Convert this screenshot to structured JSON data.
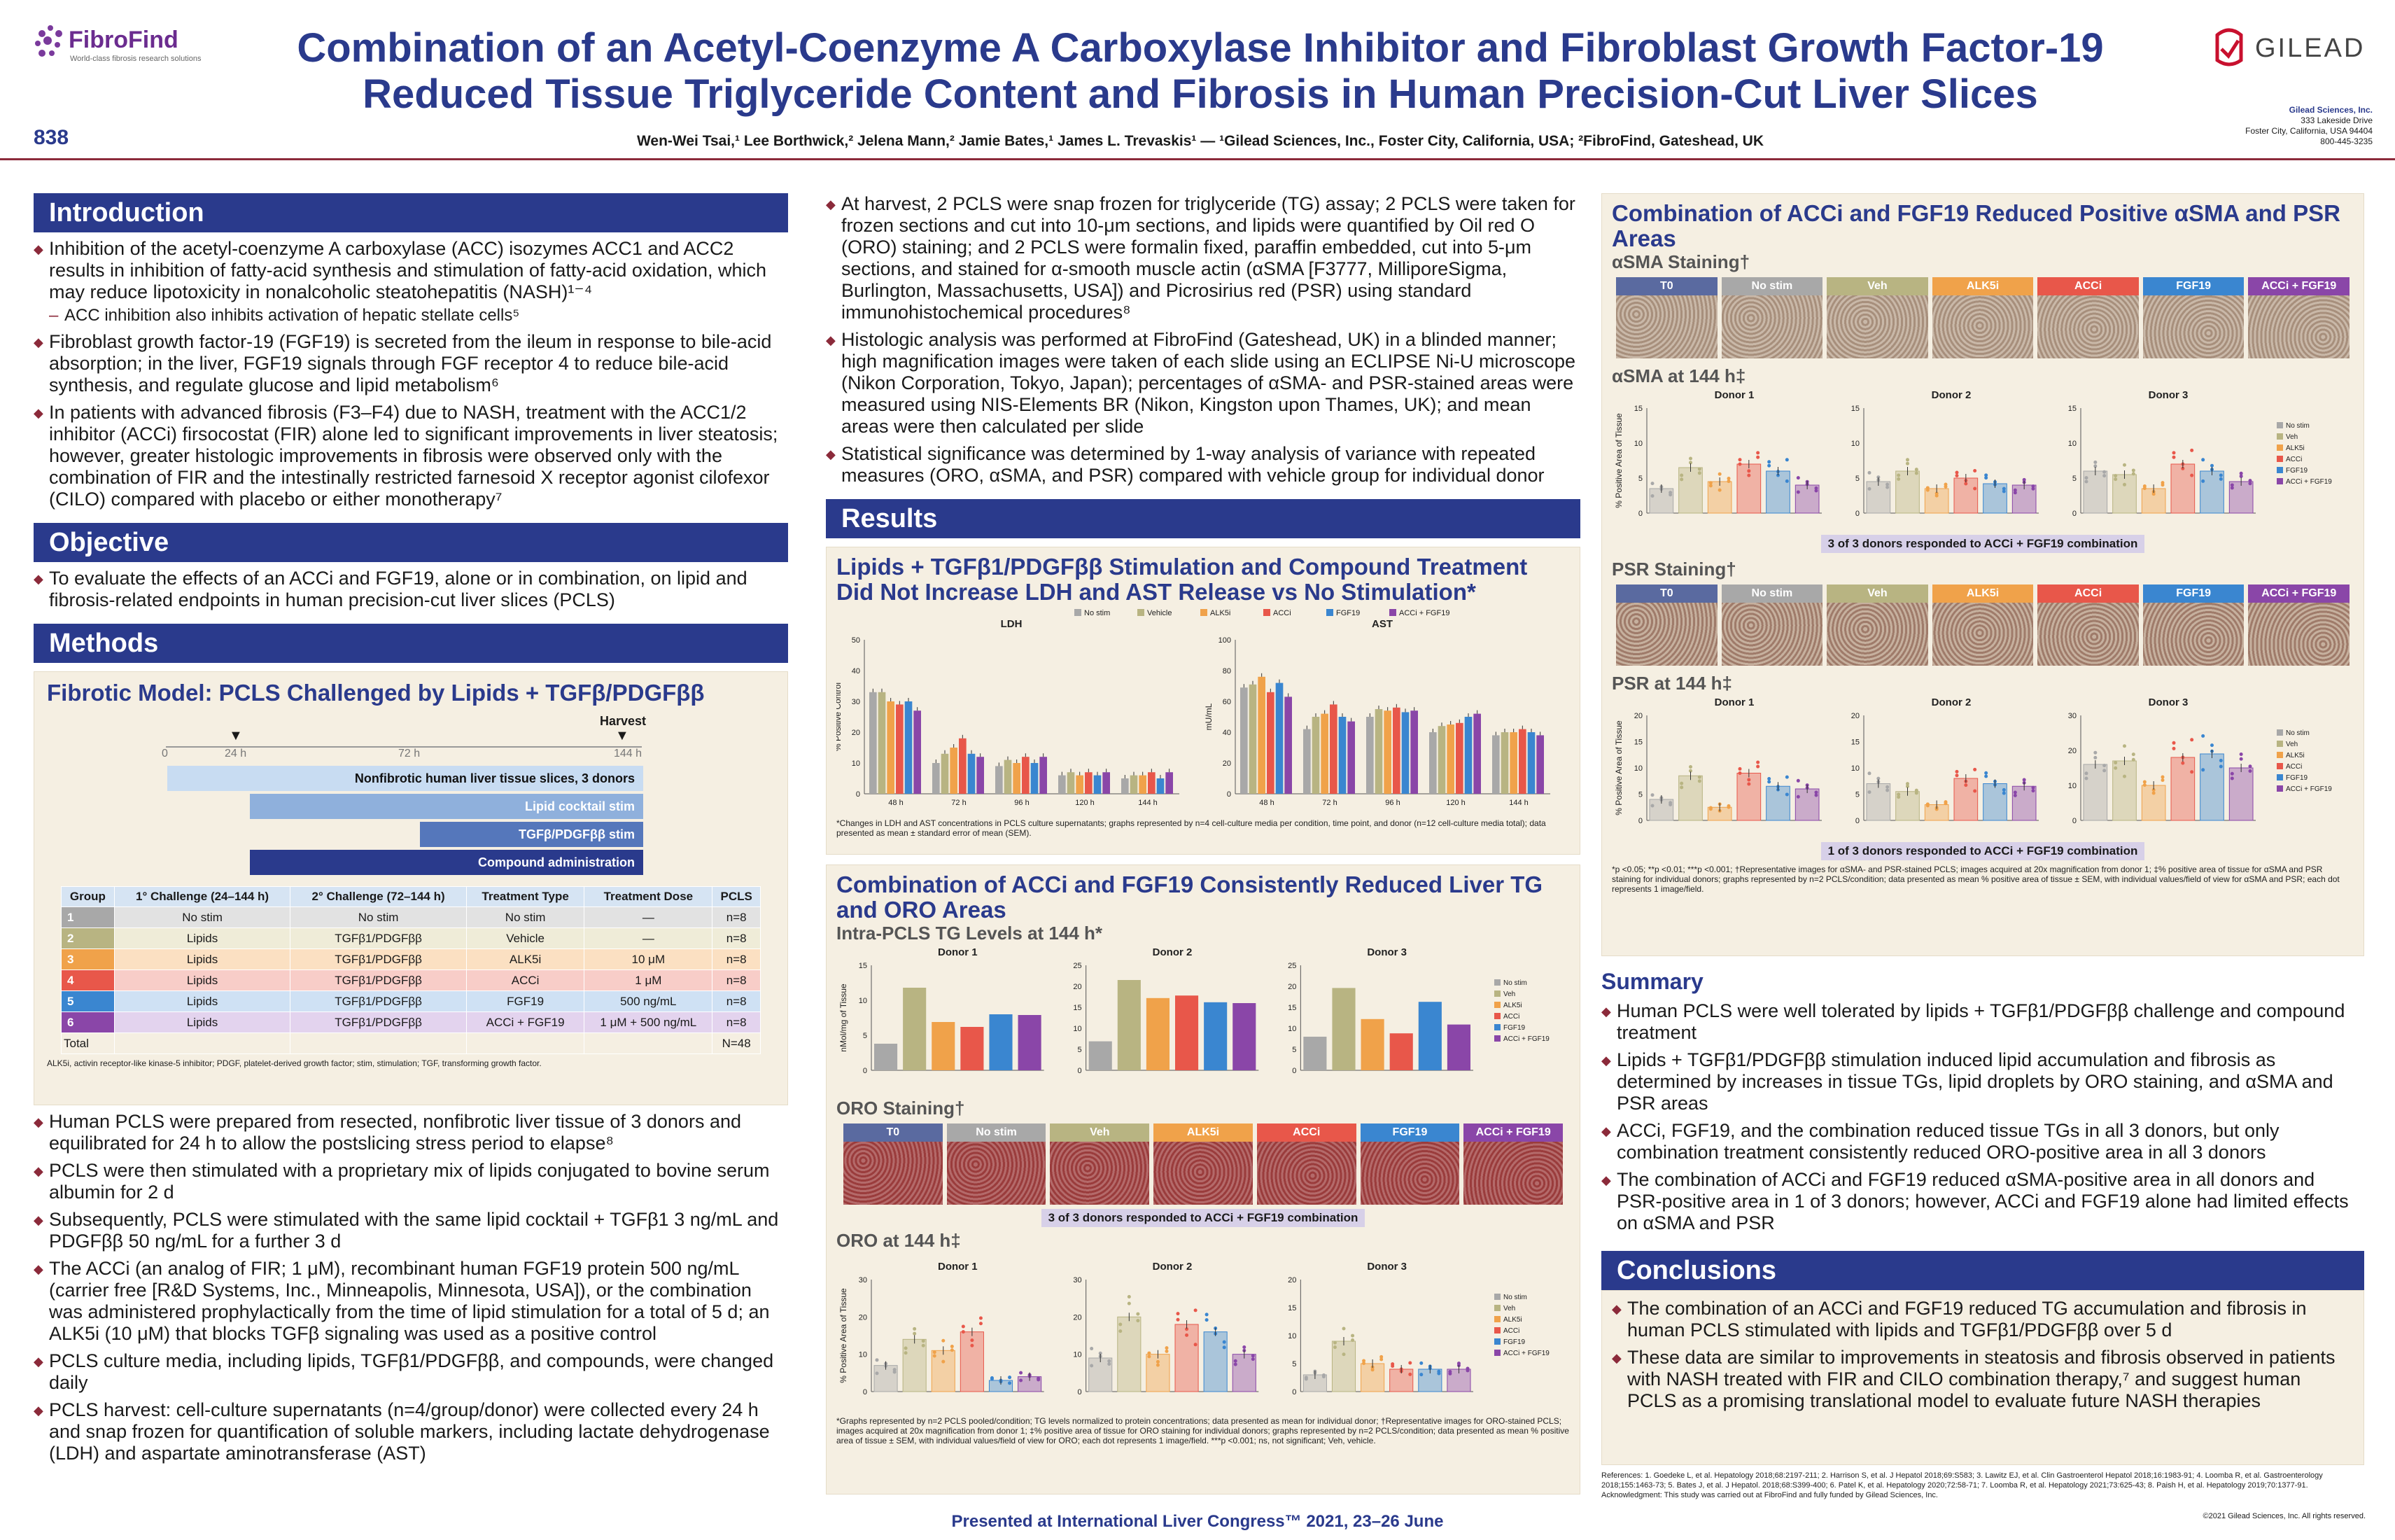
{
  "header": {
    "poster_number": "838",
    "fibrofind_name": "FibroFind",
    "fibrofind_tagline": "World-class fibrosis research solutions",
    "title_line1": "Combination of an Acetyl-Coenzyme A Carboxylase Inhibitor and Fibroblast Growth Factor-19",
    "title_line2": "Reduced Tissue Triglyceride Content and Fibrosis in Human Precision-Cut Liver Slices",
    "authors": "Wen-Wei Tsai,¹ Lee Borthwick,² Jelena Mann,² Jamie Bates,¹ James L. Trevaskis¹ — ¹Gilead Sciences, Inc., Foster City, California, USA; ²FibroFind, Gateshead, UK",
    "gilead_name": "GILEAD",
    "gilead_addr1": "Gilead Sciences, Inc.",
    "gilead_addr2": "333 Lakeside Drive",
    "gilead_addr3": "Foster City, California, USA 94404",
    "gilead_addr4": "800-445-3235",
    "brand_color": "#2a3a8c",
    "accent_color": "#8b2a3a"
  },
  "introduction": {
    "heading": "Introduction",
    "b1": "Inhibition of the acetyl-coenzyme A carboxylase (ACC) isozymes ACC1 and ACC2 results in inhibition of fatty-acid synthesis and stimulation of fatty-acid oxidation, which may reduce lipotoxicity in nonalcoholic steatohepatitis (NASH)¹⁻⁴",
    "b1_sub": "ACC inhibition also inhibits activation of hepatic stellate cells⁵",
    "b2": "Fibroblast growth factor-19 (FGF19) is secreted from the ileum in response to bile-acid absorption; in the liver, FGF19 signals through FGF receptor 4 to reduce bile-acid synthesis, and regulate glucose and lipid metabolism⁶",
    "b3": "In patients with advanced fibrosis (F3–F4) due to NASH, treatment with the ACC1/2 inhibitor (ACCi) firsocostat (FIR) alone led to significant improvements in liver steatosis; however, greater histologic improvements in fibrosis were observed only with the combination of FIR and the intestinally restricted farnesoid X receptor agonist cilofexor (CILO) compared with placebo or either monotherapy⁷"
  },
  "objective": {
    "heading": "Objective",
    "b1": "To evaluate the effects of an ACCi and FGF19, alone or in combination, on lipid and fibrosis-related endpoints in human precision-cut liver slices (PCLS)"
  },
  "methods": {
    "heading": "Methods",
    "model_title": "Fibrotic Model: PCLS Challenged by Lipids + TGFβ/PDGFββ",
    "harvest": "Harvest",
    "ticks": [
      "0",
      "24 h",
      "72 h",
      "144 h"
    ],
    "bars": [
      "Nonfibrotic human liver tissue slices, 3 donors",
      "Lipid cocktail stim",
      "TGFβ/PDGFββ stim",
      "Compound administration"
    ],
    "table_headers": [
      "Group",
      "1° Challenge (24–144 h)",
      "2° Challenge (72–144 h)",
      "Treatment Type",
      "Treatment Dose",
      "PCLS"
    ],
    "table_rows": [
      [
        "1",
        "No stim",
        "No stim",
        "No stim",
        "—",
        "n=8"
      ],
      [
        "2",
        "Lipids",
        "TGFβ1/PDGFββ",
        "Vehicle",
        "—",
        "n=8"
      ],
      [
        "3",
        "Lipids",
        "TGFβ1/PDGFββ",
        "ALK5i",
        "10 μM",
        "n=8"
      ],
      [
        "4",
        "Lipids",
        "TGFβ1/PDGFββ",
        "ACCi",
        "1 μM",
        "n=8"
      ],
      [
        "5",
        "Lipids",
        "TGFβ1/PDGFββ",
        "FGF19",
        "500 ng/mL",
        "n=8"
      ],
      [
        "6",
        "Lipids",
        "TGFβ1/PDGFββ",
        "ACCi + FGF19",
        "1 μM + 500 ng/mL",
        "n=8"
      ]
    ],
    "table_total": "Total",
    "table_total_n": "N=48",
    "table_footnote": "ALK5i, activin receptor-like kinase-5 inhibitor; PDGF, platelet-derived growth factor; stim, stimulation; TGF, transforming growth factor.",
    "b1": "Human PCLS were prepared from resected, nonfibrotic liver tissue of 3 donors and equilibrated for 24 h to allow the postslicing stress period to elapse⁸",
    "b2": "PCLS were then stimulated with a proprietary mix of lipids conjugated to bovine serum albumin for 2 d",
    "b3": "Subsequently, PCLS were stimulated with the same lipid cocktail + TGFβ1 3 ng/mL and PDGFββ 50 ng/mL for a further 3 d",
    "b4": "The ACCi (an analog of FIR; 1 μM), recombinant human FGF19 protein 500 ng/mL (carrier free [R&D Systems, Inc., Minneapolis, Minnesota, USA]), or the combination was administered prophylactically from the time of lipid stimulation for a total of 5 d; an ALK5i (10 μM) that blocks TGFβ signaling was used as a positive control",
    "b5": "PCLS culture media, including lipids, TGFβ1/PDGFββ, and compounds, were changed daily",
    "b6": "PCLS harvest: cell-culture supernatants (n=4/group/donor) were collected every 24 h and snap frozen for quantification of soluble markers, including lactate dehydrogenase (LDH) and aspartate aminotransferase (AST)",
    "c2b1": "At harvest, 2 PCLS were snap frozen for triglyceride (TG) assay; 2 PCLS were taken for frozen sections and cut into 10-μm sections, and lipids were quantified by Oil red O (ORO) staining; and 2 PCLS were formalin fixed, paraffin embedded, cut into 5-μm sections, and stained for α-smooth muscle actin (αSMA [F3777, MilliporeSigma, Burlington, Massachusetts, USA]) and Picrosirius red (PSR) using standard immunohistochemical procedures⁸",
    "c2b2": "Histologic analysis was performed at FibroFind (Gateshead, UK) in a blinded manner; high magnification images were taken of each slide using an ECLIPSE Ni-U microscope (Nikon Corporation, Tokyo, Japan); percentages of αSMA- and PSR-stained areas were measured using NIS-Elements BR (Nikon, Kingston upon Thames, UK); and mean areas were then calculated per slide",
    "c2b3": "Statistical significance was determined by 1-way analysis of variance with repeated measures (ORO, αSMA, and PSR) compared with vehicle group for individual donor"
  },
  "groups": {
    "names": [
      "T0",
      "No stim",
      "Veh",
      "ALK5i",
      "ACCi",
      "FGF19",
      "ACCi + FGF19"
    ],
    "legend6": [
      "No stim",
      "Veh",
      "ALK5i",
      "ACCi",
      "FGF19",
      "ACCi + FGF19"
    ],
    "legend6_ldh": [
      "No stim",
      "Vehicle",
      "ALK5i",
      "ACCi",
      "FGF19",
      "ACCi + FGF19"
    ],
    "colors": {
      "T0": "#5a6aa0",
      "No stim": "#a8a8a8",
      "Veh": "#b8b482",
      "ALK5i": "#f0a24a",
      "ACCi": "#e8574a",
      "FGF19": "#3a86d0",
      "ACCi + FGF19": "#8a46a8"
    }
  },
  "results": {
    "heading": "Results",
    "ldh_title": "Lipids + TGFβ1/PDGFββ Stimulation and Compound Treatment Did Not Increase LDH and AST Release vs No Stimulation*",
    "ldh_footnote": "*Changes in LDH and AST concentrations in PCLS culture supernatants; graphs represented by n=4 cell-culture media per condition, time point, and donor (n=12 cell-culture media total); data presented as mean ± standard error of mean (SEM).",
    "tg_title": "Combination of ACCi and FGF19 Consistently Reduced Liver TG and ORO Areas",
    "tg_subtitle": "Intra-PCLS TG Levels at 144 h*",
    "oro_staining": "ORO Staining†",
    "oro_at": "ORO at 144 h‡",
    "oro_resp": "3 of 3 donors responded to ACCi + FGF19 combination",
    "oro_footnote": "*Graphs represented by n=2 PCLS pooled/condition; TG levels normalized to protein concentrations; data presented as mean for individual donor; †Representative images for ORO-stained PCLS; images acquired at 20x magnification from donor 1; ‡% positive area of tissue for ORO staining for individual donors; graphs represented by n=2 PCLS/condition; data presented as mean % positive area of tissue ± SEM, with individual values/field of view for ORO; each dot represents 1 image/field. ***p <0.001; ns, not significant; Veh, vehicle.",
    "asma_title": "Combination of ACCi and FGF19 Reduced Positive αSMA and PSR Areas",
    "asma_staining": "αSMA Staining†",
    "asma_at": "αSMA at 144 h‡",
    "asma_resp": "3 of 3 donors responded to ACCi + FGF19 combination",
    "psr_staining": "PSR Staining†",
    "psr_at": "PSR at 144 h‡",
    "psr_resp": "1 of 3 donors responded to ACCi + FGF19 combination",
    "asma_footnote": "*p <0.05; **p <0.01; ***p <0.001; †Representative images for αSMA- and PSR-stained PCLS; images acquired at 20x magnification from donor 1; ‡% positive area of tissue for αSMA and PSR staining for individual donors; graphs represented by n=2 PCLS/condition; data presented as mean % positive area of tissue ± SEM, with individual values/field of view for αSMA and PSR; each dot represents 1 image/field."
  },
  "summary": {
    "heading": "Summary",
    "b1": "Human PCLS were well tolerated by lipids + TGFβ1/PDGFββ challenge and compound treatment",
    "b2": "Lipids + TGFβ1/PDGFββ stimulation induced lipid accumulation and fibrosis as determined by increases in tissue TGs, lipid droplets by ORO staining, and αSMA and PSR areas",
    "b3": "ACCi, FGF19, and the combination reduced tissue TGs in all 3 donors, but only combination treatment consistently reduced ORO-positive area in all 3 donors",
    "b4": "The combination of ACCi and FGF19 reduced αSMA-positive area in all donors and PSR-positive area in 1 of 3 donors; however, ACCi and FGF19 alone had limited effects on αSMA and PSR"
  },
  "conclusions": {
    "heading": "Conclusions",
    "b1": "The combination of an ACCi and FGF19 reduced TG accumulation and fibrosis in human PCLS stimulated with lipids and TGFβ1/PDGFββ over 5 d",
    "b2": "These data are similar to improvements in steatosis and fibrosis observed in patients with NASH treated with FIR and CILO combination therapy,⁷ and suggest human PCLS as a promising translational model to evaluate future NASH therapies"
  },
  "references": "References: 1. Goedeke L, et al. Hepatology 2018;68:2197-211; 2. Harrison S, et al. J Hepatol 2018;69:S583; 3. Lawitz EJ, et al. Clin Gastroenterol Hepatol 2018;16:1983-91; 4. Loomba R, et al. Gastroenterology 2018;155:1463-73; 5. Bates J, et al. J Hepatol. 2018;68:S399-400; 6. Patel K, et al. Hepatology 2020;72:58-71; 7. Loomba R, et al. Hepatology 2021;73:625-43; 8. Paish H, et al. Hepatology 2019;70:1377-91.",
  "acknowledgment": "Acknowledgment: This study was carried out at FibroFind and fully funded by Gilead Sciences, Inc.",
  "footer": {
    "presented": "Presented at International Liver Congress™ 2021, 23–26 June",
    "copyright": "©2021 Gilead Sciences, Inc.    All rights reserved."
  },
  "chart_data": [
    {
      "id": "ldh",
      "type": "bar",
      "title": "LDH",
      "ylabel": "% Positive Control",
      "categories": [
        "48 h",
        "72 h",
        "96 h",
        "120 h",
        "144 h"
      ],
      "ylim": [
        0,
        50
      ],
      "yticks": [
        0,
        10,
        20,
        30,
        40,
        50
      ],
      "series": [
        {
          "name": "No stim",
          "values": [
            33,
            10,
            9,
            6,
            5
          ]
        },
        {
          "name": "Vehicle",
          "values": [
            33,
            13,
            11,
            7,
            6
          ]
        },
        {
          "name": "ALK5i",
          "values": [
            30,
            15,
            10,
            6,
            6
          ]
        },
        {
          "name": "ACCi",
          "values": [
            29,
            18,
            12,
            7,
            7
          ]
        },
        {
          "name": "FGF19",
          "values": [
            30,
            13,
            10,
            6,
            5
          ]
        },
        {
          "name": "ACCi + FGF19",
          "values": [
            27,
            12,
            12,
            7,
            7
          ]
        }
      ]
    },
    {
      "id": "ast",
      "type": "bar",
      "title": "AST",
      "ylabel": "mU/mL",
      "categories": [
        "48 h",
        "72 h",
        "96 h",
        "120 h",
        "144 h"
      ],
      "ylim": [
        0,
        100
      ],
      "yticks": [
        0,
        20,
        40,
        60,
        80,
        100
      ],
      "series": [
        {
          "name": "No stim",
          "values": [
            69,
            42,
            50,
            40,
            38
          ]
        },
        {
          "name": "Vehicle",
          "values": [
            71,
            50,
            55,
            44,
            40
          ]
        },
        {
          "name": "ALK5i",
          "values": [
            76,
            52,
            54,
            45,
            40
          ]
        },
        {
          "name": "ACCi",
          "values": [
            66,
            58,
            56,
            46,
            42
          ]
        },
        {
          "name": "FGF19",
          "values": [
            72,
            50,
            53,
            50,
            40
          ]
        },
        {
          "name": "ACCi + FGF19",
          "values": [
            63,
            47,
            54,
            52,
            38
          ]
        }
      ]
    },
    {
      "id": "tg",
      "type": "bar",
      "title": "Intra-PCLS TG Levels at 144 h",
      "ylabel": "nMol/mg of Tissue",
      "donors": [
        "Donor 1",
        "Donor 2",
        "Donor 3"
      ],
      "categories": [
        "No stim",
        "Veh",
        "ALK5i",
        "ACCi",
        "FGF19",
        "ACCi + FGF19"
      ],
      "ylim": [
        0,
        15
      ],
      "yticks": [
        0,
        5,
        10,
        15
      ],
      "donor_ylim": [
        [
          0,
          15
        ],
        [
          0,
          25
        ],
        [
          0,
          25
        ]
      ],
      "donor_yticks": [
        [
          0,
          5,
          10,
          15
        ],
        [
          0,
          5,
          10,
          15,
          20,
          25
        ],
        [
          0,
          5,
          10,
          15,
          20,
          25
        ]
      ],
      "values": [
        [
          3.8,
          11.8,
          6.9,
          6.2,
          8.0,
          7.9
        ],
        [
          6.9,
          21.5,
          17.2,
          17.8,
          16.2,
          16.0
        ],
        [
          8.0,
          19.6,
          12.2,
          8.8,
          16.3,
          10.9
        ]
      ]
    },
    {
      "id": "oro",
      "type": "bar",
      "title": "ORO at 144 h",
      "ylabel": "% Positive Area of Tissue",
      "donors": [
        "Donor 1",
        "Donor 2",
        "Donor 3"
      ],
      "categories": [
        "No stim",
        "Veh",
        "ALK5i",
        "ACCi",
        "FGF19",
        "ACCi + FGF19"
      ],
      "donor_ylim": [
        [
          0,
          30
        ],
        [
          0,
          30
        ],
        [
          0,
          20
        ]
      ],
      "donor_yticks": [
        [
          0,
          10,
          20,
          30
        ],
        [
          0,
          10,
          20,
          30
        ],
        [
          0,
          5,
          10,
          15,
          20
        ]
      ],
      "values": [
        [
          7,
          14,
          11,
          16,
          3,
          4
        ],
        [
          9,
          20,
          10,
          18,
          16,
          10
        ],
        [
          3,
          9,
          5,
          4,
          4,
          4
        ]
      ]
    },
    {
      "id": "asma",
      "type": "bar",
      "title": "αSMA at 144 h",
      "ylabel": "% Positive Area of Tissue",
      "donors": [
        "Donor 1",
        "Donor 2",
        "Donor 3"
      ],
      "categories": [
        "No stim",
        "Veh",
        "ALK5i",
        "ACCi",
        "FGF19",
        "ACCi + FGF19"
      ],
      "donor_ylim": [
        [
          0,
          15
        ],
        [
          0,
          15
        ],
        [
          0,
          15
        ]
      ],
      "donor_yticks": [
        [
          0,
          5,
          10,
          15
        ],
        [
          0,
          5,
          10,
          15
        ],
        [
          0,
          5,
          10,
          15
        ]
      ],
      "values": [
        [
          3.5,
          6.5,
          4.5,
          7,
          6,
          4
        ],
        [
          4.5,
          6,
          3.5,
          5,
          4.2,
          4
        ],
        [
          6,
          5.5,
          3.5,
          7,
          6,
          4.5
        ]
      ]
    },
    {
      "id": "psr",
      "type": "bar",
      "title": "PSR at 144 h",
      "ylabel": "% Positive Area of Tissue",
      "donors": [
        "Donor 1",
        "Donor 2",
        "Donor 3"
      ],
      "categories": [
        "No stim",
        "Veh",
        "ALK5i",
        "ACCi",
        "FGF19",
        "ACCi + FGF19"
      ],
      "donor_ylim": [
        [
          0,
          20
        ],
        [
          0,
          20
        ],
        [
          0,
          30
        ]
      ],
      "donor_yticks": [
        [
          0,
          5,
          10,
          15,
          20
        ],
        [
          0,
          5,
          10,
          15,
          20
        ],
        [
          0,
          10,
          20,
          30
        ]
      ],
      "values": [
        [
          4,
          8.5,
          2.5,
          9,
          6.5,
          6
        ],
        [
          7,
          5.5,
          3,
          8,
          7,
          6.5
        ],
        [
          16,
          17,
          10,
          18,
          19,
          15
        ]
      ]
    }
  ]
}
